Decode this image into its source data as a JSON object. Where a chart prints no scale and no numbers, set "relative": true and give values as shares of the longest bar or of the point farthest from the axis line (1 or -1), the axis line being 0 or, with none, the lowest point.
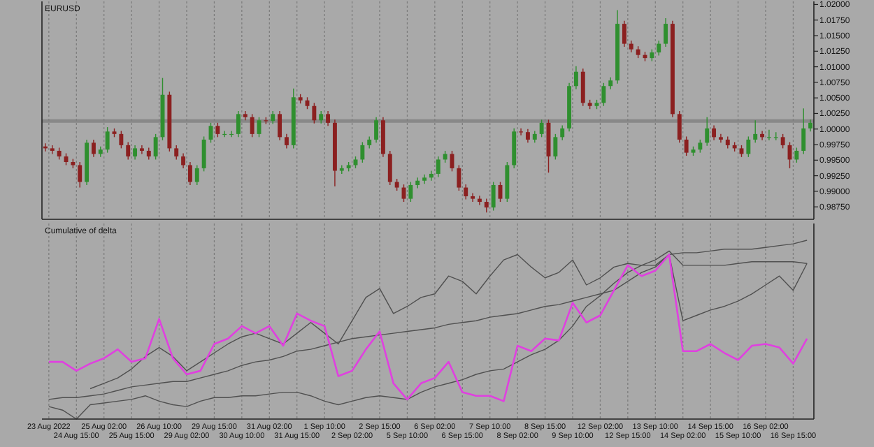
{
  "chart_data": [
    {
      "type": "candlestick",
      "title": "EURUSD",
      "grid": "x",
      "tick_labels": "y",
      "categories": [
        null,
        null,
        null,
        null,
        null,
        null,
        null,
        null,
        null,
        null,
        null,
        null,
        null,
        null,
        null,
        null,
        null,
        null,
        null,
        null,
        null,
        null,
        null,
        null,
        null,
        null,
        null,
        null,
        null,
        null,
        null,
        null,
        null,
        null,
        null,
        null,
        null,
        null,
        null,
        null,
        null,
        null,
        null,
        null,
        null,
        null,
        null,
        null,
        null,
        null,
        null,
        null,
        null,
        null,
        null,
        null,
        null,
        null,
        null,
        null,
        null,
        null,
        null,
        null,
        null,
        null,
        null,
        null,
        null,
        null,
        null,
        null,
        null,
        null,
        null,
        null,
        null,
        null,
        null,
        null,
        null,
        null,
        null,
        null,
        null,
        null,
        null,
        null,
        null,
        null,
        null,
        null,
        null,
        null,
        null,
        null,
        null,
        null,
        null,
        null,
        null,
        null,
        null,
        null,
        null,
        null,
        null,
        null,
        null,
        null,
        null,
        null
      ],
      "ylim": [
        0.9855,
        1.0205
      ],
      "yticks": [
        {
          "value": 0.9875,
          "label": "0.98750"
        },
        {
          "value": 0.99,
          "label": "0.99000"
        },
        {
          "value": 0.9925,
          "label": "0.99250"
        },
        {
          "value": 0.995,
          "label": "0.99500"
        },
        {
          "value": 0.9975,
          "label": "0.99750"
        },
        {
          "value": 1.0,
          "label": "1.00000"
        },
        {
          "value": 1.0025,
          "label": "1.00250"
        },
        {
          "value": 1.005,
          "label": "1.00500"
        },
        {
          "value": 1.0075,
          "label": "1.00750"
        },
        {
          "value": 1.01,
          "label": "1.01000"
        },
        {
          "value": 1.0125,
          "label": "1.01250"
        },
        {
          "value": 1.015,
          "label": "1.01500"
        },
        {
          "value": 1.0175,
          "label": "1.01750"
        },
        {
          "value": 1.02,
          "label": "1.02000"
        }
      ],
      "ref_lines": [
        {
          "axis": "y",
          "value": 1.0013,
          "color": "#808080"
        }
      ],
      "ohlc": [
        [
          0.9972,
          0.9977,
          0.9964,
          0.9969
        ],
        [
          0.9969,
          0.9974,
          0.996,
          0.9965
        ],
        [
          0.9965,
          0.997,
          0.9951,
          0.9956
        ],
        [
          0.9956,
          0.9961,
          0.9942,
          0.9947
        ],
        [
          0.9947,
          0.9952,
          0.9937,
          0.9942
        ],
        [
          0.9942,
          0.9947,
          0.9906,
          0.9915
        ],
        [
          0.9915,
          0.9983,
          0.991,
          0.9978
        ],
        [
          0.9978,
          0.9983,
          0.9955,
          0.996
        ],
        [
          0.996,
          0.9972,
          0.9955,
          0.9967
        ],
        [
          0.9967,
          1.0003,
          0.9962,
          0.9996
        ],
        [
          0.9996,
          1.0001,
          0.9987,
          0.9992
        ],
        [
          0.9992,
          0.9997,
          0.9969,
          0.9974
        ],
        [
          0.9974,
          0.9979,
          0.9951,
          0.9956
        ],
        [
          0.9956,
          0.9974,
          0.9951,
          0.9969
        ],
        [
          0.9969,
          0.9974,
          0.996,
          0.9965
        ],
        [
          0.9965,
          0.997,
          0.9951,
          0.9956
        ],
        [
          0.9956,
          0.9992,
          0.9951,
          0.9987
        ],
        [
          0.9987,
          1.0082,
          0.9982,
          1.0055
        ],
        [
          1.0055,
          1.006,
          0.9964,
          0.9969
        ],
        [
          0.9969,
          0.9974,
          0.9951,
          0.9956
        ],
        [
          0.9956,
          0.9961,
          0.9937,
          0.9942
        ],
        [
          0.9942,
          0.9947,
          0.991,
          0.9915
        ],
        [
          0.9915,
          0.9942,
          0.991,
          0.9937
        ],
        [
          0.9937,
          0.9988,
          0.9932,
          0.9983
        ],
        [
          0.9983,
          1.001,
          0.9978,
          1.0005
        ],
        [
          1.0005,
          1.001,
          0.9987,
          0.9992
        ],
        [
          0.9992,
          0.9997,
          0.9987,
          0.9992
        ],
        [
          0.9992,
          0.9997,
          0.9987,
          0.9992
        ],
        [
          0.9992,
          1.0029,
          0.9987,
          1.0024
        ],
        [
          1.0024,
          1.0029,
          1.0014,
          1.0019
        ],
        [
          1.0019,
          1.0024,
          0.9987,
          0.9992
        ],
        [
          0.9992,
          1.0019,
          0.9987,
          1.0014
        ],
        [
          1.0014,
          1.0019,
          1.0008,
          1.0013
        ],
        [
          1.0013,
          1.0029,
          1.0008,
          1.0024
        ],
        [
          1.0024,
          1.0029,
          0.9982,
          0.9987
        ],
        [
          0.9987,
          0.9992,
          0.9969,
          0.9974
        ],
        [
          0.9974,
          1.0065,
          0.9969,
          1.0051
        ],
        [
          1.0051,
          1.0056,
          1.0041,
          1.0046
        ],
        [
          1.0046,
          1.0051,
          1.0032,
          1.0037
        ],
        [
          1.0037,
          1.0042,
          1.0009,
          1.0014
        ],
        [
          1.0014,
          1.0029,
          1.0009,
          1.0024
        ],
        [
          1.0024,
          1.0029,
          1.0005,
          1.001
        ],
        [
          1.001,
          1.0015,
          0.9908,
          0.9933
        ],
        [
          0.9933,
          0.9942,
          0.9928,
          0.9937
        ],
        [
          0.9937,
          0.9947,
          0.9932,
          0.9942
        ],
        [
          0.9942,
          0.9956,
          0.9937,
          0.9951
        ],
        [
          0.9951,
          0.9979,
          0.9946,
          0.9974
        ],
        [
          0.9974,
          0.9988,
          0.9969,
          0.9983
        ],
        [
          0.9983,
          1.0019,
          0.9978,
          1.0014
        ],
        [
          1.0014,
          1.0019,
          0.9955,
          0.996
        ],
        [
          0.996,
          0.9965,
          0.991,
          0.9915
        ],
        [
          0.9915,
          0.992,
          0.9901,
          0.9906
        ],
        [
          0.9906,
          0.9911,
          0.9883,
          0.9888
        ],
        [
          0.9888,
          0.9915,
          0.9883,
          0.991
        ],
        [
          0.991,
          0.9922,
          0.9905,
          0.9917
        ],
        [
          0.9917,
          0.9927,
          0.9912,
          0.9922
        ],
        [
          0.9922,
          0.9933,
          0.9917,
          0.9928
        ],
        [
          0.9928,
          0.9956,
          0.9923,
          0.9951
        ],
        [
          0.9951,
          0.9965,
          0.9946,
          0.996
        ],
        [
          0.996,
          0.9965,
          0.9932,
          0.9937
        ],
        [
          0.9937,
          0.9942,
          0.9901,
          0.9906
        ],
        [
          0.9906,
          0.9911,
          0.9887,
          0.9892
        ],
        [
          0.9892,
          0.9897,
          0.9883,
          0.9888
        ],
        [
          0.9888,
          0.9893,
          0.9878,
          0.9883
        ],
        [
          0.9883,
          0.9888,
          0.9866,
          0.9874
        ],
        [
          0.9874,
          0.9915,
          0.9869,
          0.991
        ],
        [
          0.991,
          0.9915,
          0.9883,
          0.9888
        ],
        [
          0.9888,
          0.9947,
          0.9883,
          0.9942
        ],
        [
          0.9942,
          1.0001,
          0.9937,
          0.9996
        ],
        [
          0.9996,
          1.0001,
          0.999,
          0.9995
        ],
        [
          0.9995,
          1.0,
          0.9978,
          0.9983
        ],
        [
          0.9983,
          0.9997,
          0.9978,
          0.9992
        ],
        [
          0.9992,
          1.0015,
          0.9987,
          1.001
        ],
        [
          1.001,
          1.0015,
          0.993,
          0.9956
        ],
        [
          0.9956,
          0.9992,
          0.9951,
          0.9987
        ],
        [
          0.9987,
          1.0006,
          0.9982,
          1.0001
        ],
        [
          1.0001,
          1.0074,
          0.9996,
          1.0069
        ],
        [
          1.0069,
          1.0101,
          1.0064,
          1.0092
        ],
        [
          1.0092,
          1.0097,
          1.0037,
          1.0042
        ],
        [
          1.0042,
          1.0047,
          1.0032,
          1.0037
        ],
        [
          1.0037,
          1.0047,
          1.0032,
          1.0042
        ],
        [
          1.0042,
          1.0074,
          1.0037,
          1.0069
        ],
        [
          1.0069,
          1.0083,
          1.0064,
          1.0078
        ],
        [
          1.0078,
          1.0191,
          1.0073,
          1.0169
        ],
        [
          1.0169,
          1.0174,
          1.0132,
          1.0137
        ],
        [
          1.0137,
          1.0142,
          1.0123,
          1.0128
        ],
        [
          1.0128,
          1.0133,
          1.0114,
          1.0119
        ],
        [
          1.0119,
          1.0124,
          1.0109,
          1.0114
        ],
        [
          1.0114,
          1.0128,
          1.0109,
          1.0123
        ],
        [
          1.0123,
          1.0142,
          1.0118,
          1.0137
        ],
        [
          1.0137,
          1.0178,
          1.0132,
          1.0169
        ],
        [
          1.0169,
          1.0174,
          1.0019,
          1.0024
        ],
        [
          1.0024,
          1.0029,
          0.9978,
          0.9983
        ],
        [
          0.9983,
          0.9988,
          0.9957,
          0.9962
        ],
        [
          0.9962,
          0.9972,
          0.9957,
          0.9967
        ],
        [
          0.9967,
          0.9983,
          0.9962,
          0.9978
        ],
        [
          0.9978,
          1.0019,
          0.9973,
          1.0001
        ],
        [
          1.0001,
          1.0006,
          0.9982,
          0.9987
        ],
        [
          0.9987,
          0.9992,
          0.9978,
          0.9983
        ],
        [
          0.9983,
          0.9988,
          0.9969,
          0.9974
        ],
        [
          0.9974,
          0.9979,
          0.9964,
          0.9969
        ],
        [
          0.9969,
          0.9974,
          0.9955,
          0.996
        ],
        [
          0.996,
          0.9988,
          0.9955,
          0.9983
        ],
        [
          0.9983,
          1.0014,
          0.9978,
          0.9992
        ],
        [
          0.9992,
          0.9997,
          0.9982,
          0.9987
        ],
        [
          0.9987,
          0.9999,
          0.9982,
          0.9987
        ],
        [
          0.9987,
          0.9995,
          0.9982,
          0.9987
        ],
        [
          0.9987,
          0.9992,
          0.9969,
          0.9974
        ],
        [
          0.9974,
          0.9979,
          0.9937,
          0.9951
        ],
        [
          0.9951,
          0.997,
          0.9946,
          0.9965
        ],
        [
          0.9965,
          1.0033,
          0.996,
          1.0001
        ],
        [
          1.0001,
          1.0015,
          0.9996,
          1.001
        ]
      ]
    },
    {
      "type": "line",
      "title": "Cumulative of delta",
      "grid": "x",
      "relative": true,
      "categories": [
        "23 Aug 2022",
        null,
        "24 Aug 15:00",
        null,
        "25 Aug 02:00",
        null,
        "25 Aug 15:00",
        null,
        "26 Aug 10:00",
        null,
        "29 Aug 02:00",
        null,
        "29 Aug 15:00",
        null,
        "30 Aug 10:00",
        null,
        "31 Aug 02:00",
        null,
        "31 Aug 15:00",
        null,
        "1 Sep 10:00",
        null,
        "2 Sep 02:00",
        null,
        "2 Sep 15:00",
        null,
        "5 Sep 10:00",
        null,
        "6 Sep 02:00",
        null,
        "6 Sep 15:00",
        null,
        "7 Sep 10:00",
        null,
        "8 Sep 02:00",
        null,
        "8 Sep 15:00",
        null,
        "9 Sep 10:00",
        null,
        "12 Sep 02:00",
        null,
        "12 Sep 15:00",
        null,
        "13 Sep 10:00",
        null,
        "14 Sep 02:00",
        null,
        "14 Sep 15:00",
        null,
        "15 Sep 10:00",
        null,
        "16 Sep 02:00",
        null,
        "16 Sep 15:00",
        null
      ],
      "series": [
        {
          "color": "#505050",
          "values": [
            0.11,
            0.12,
            0.12,
            0.13,
            0.14,
            0.16,
            0.18,
            0.19,
            0.2,
            0.21,
            0.21,
            0.23,
            0.25,
            0.27,
            0.3,
            0.32,
            0.33,
            0.35,
            0.38,
            0.39,
            0.41,
            0.43,
            0.45,
            0.46,
            0.47,
            0.48,
            0.49,
            0.5,
            0.51,
            0.53,
            0.54,
            0.55,
            0.57,
            0.58,
            0.59,
            0.61,
            0.63,
            0.64,
            0.66,
            0.68,
            0.7,
            0.72,
            0.77,
            0.82,
            0.85,
            0.92,
            0.93,
            0.93,
            0.94,
            0.95,
            0.95,
            0.95,
            0.96,
            0.97,
            0.98,
            1.0
          ]
        },
        {
          "color": "#505050",
          "values": [
            0.07,
            0.05,
            0.0,
            0.08,
            0.09,
            0.1,
            0.11,
            0.13,
            0.1,
            0.08,
            0.07,
            0.1,
            0.12,
            0.12,
            0.13,
            0.13,
            0.14,
            0.15,
            0.15,
            0.13,
            0.1,
            0.08,
            0.1,
            0.12,
            0.13,
            0.12,
            0.11,
            0.15,
            0.18,
            0.2,
            0.22,
            0.25,
            0.27,
            0.28,
            0.32,
            0.36,
            0.39,
            0.44,
            0.52,
            0.63,
            0.69,
            0.76,
            0.82,
            0.86,
            0.89,
            0.94,
            0.86,
            0.86,
            0.86,
            0.86,
            0.87,
            0.88,
            0.88,
            0.88,
            0.88,
            0.87
          ]
        },
        {
          "color": "#505050",
          "values": [
            null,
            null,
            null,
            0.17,
            0.2,
            0.23,
            0.28,
            0.35,
            0.4,
            0.35,
            0.27,
            0.32,
            0.37,
            0.42,
            0.46,
            0.48,
            0.45,
            0.42,
            0.48,
            0.54,
            0.48,
            0.42,
            0.55,
            0.68,
            0.73,
            0.59,
            0.63,
            0.68,
            0.7,
            0.8,
            0.77,
            0.7,
            0.8,
            0.89,
            0.92,
            0.85,
            0.79,
            0.82,
            0.89,
            0.75,
            0.79,
            0.85,
            0.87,
            0.86,
            0.86,
            0.92,
            0.55,
            0.58,
            0.61,
            0.63,
            0.66,
            0.7,
            0.75,
            0.8,
            0.72,
            0.87
          ]
        },
        {
          "color": "#e040e0",
          "values": [
            0.32,
            0.32,
            0.27,
            0.31,
            0.34,
            0.39,
            0.32,
            0.34,
            0.56,
            0.34,
            0.25,
            0.27,
            0.42,
            0.45,
            0.52,
            0.48,
            0.52,
            0.41,
            0.59,
            0.55,
            0.52,
            0.24,
            0.27,
            0.39,
            0.49,
            0.2,
            0.11,
            0.2,
            0.23,
            0.32,
            0.15,
            0.13,
            0.13,
            0.1,
            0.41,
            0.38,
            0.45,
            0.44,
            0.65,
            0.54,
            0.58,
            0.72,
            0.86,
            0.8,
            0.83,
            0.92,
            0.38,
            0.38,
            0.42,
            0.37,
            0.33,
            0.41,
            0.42,
            0.4,
            0.31,
            0.45
          ]
        }
      ]
    }
  ]
}
